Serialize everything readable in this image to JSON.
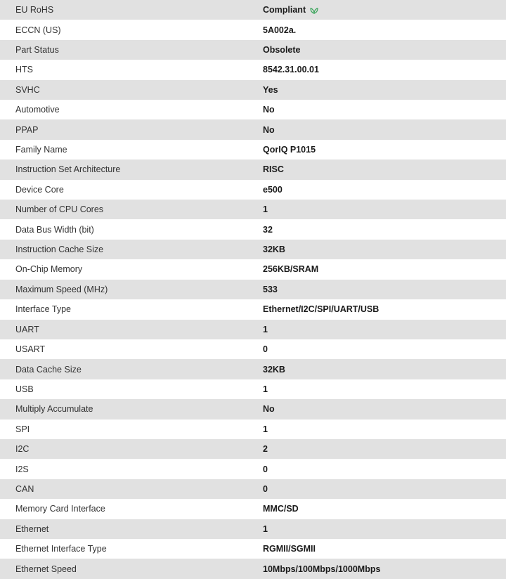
{
  "accent_color": "#3aa45a",
  "rows": [
    {
      "label": "EU RoHS",
      "value": "Compliant",
      "icon": "leaf-icon"
    },
    {
      "label": "ECCN (US)",
      "value": "5A002a."
    },
    {
      "label": "Part Status",
      "value": "Obsolete"
    },
    {
      "label": "HTS",
      "value": "8542.31.00.01"
    },
    {
      "label": "SVHC",
      "value": "Yes"
    },
    {
      "label": "Automotive",
      "value": "No"
    },
    {
      "label": "PPAP",
      "value": "No"
    },
    {
      "label": "Family Name",
      "value": "QorIQ P1015"
    },
    {
      "label": "Instruction Set Architecture",
      "value": "RISC"
    },
    {
      "label": "Device Core",
      "value": "e500"
    },
    {
      "label": "Number of CPU Cores",
      "value": "1"
    },
    {
      "label": "Data Bus Width (bit)",
      "value": "32"
    },
    {
      "label": "Instruction Cache Size",
      "value": "32KB"
    },
    {
      "label": "On-Chip Memory",
      "value": "256KB/SRAM"
    },
    {
      "label": "Maximum Speed (MHz)",
      "value": "533"
    },
    {
      "label": "Interface Type",
      "value": "Ethernet/I2C/SPI/UART/USB"
    },
    {
      "label": "UART",
      "value": "1"
    },
    {
      "label": "USART",
      "value": "0"
    },
    {
      "label": "Data Cache Size",
      "value": "32KB"
    },
    {
      "label": "USB",
      "value": "1"
    },
    {
      "label": "Multiply Accumulate",
      "value": "No"
    },
    {
      "label": "SPI",
      "value": "1"
    },
    {
      "label": "I2C",
      "value": "2"
    },
    {
      "label": "I2S",
      "value": "0"
    },
    {
      "label": "CAN",
      "value": "0"
    },
    {
      "label": "Memory Card Interface",
      "value": "MMC/SD"
    },
    {
      "label": "Ethernet",
      "value": "1"
    },
    {
      "label": "Ethernet Interface Type",
      "value": "RGMII/SGMII"
    },
    {
      "label": "Ethernet Speed",
      "value": "10Mbps/100Mbps/1000Mbps"
    }
  ]
}
